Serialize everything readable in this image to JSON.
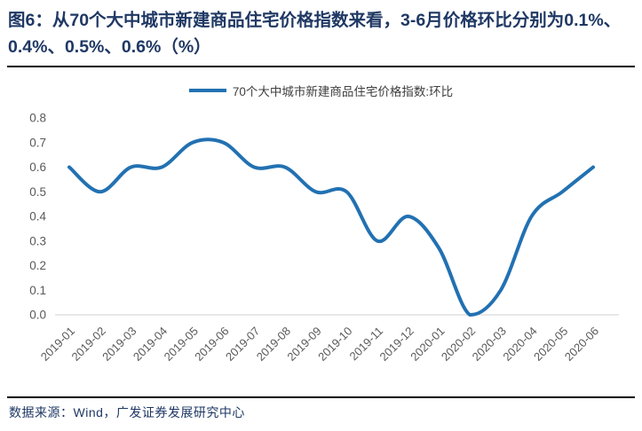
{
  "page": {
    "title": "图6：从70个大中城市新建商品住宅价格指数来看，3-6月价格环比分别为0.1%、0.4%、0.5%、0.6%（%）",
    "source": "数据来源：Wind，广发证券发展研究中心"
  },
  "colors": {
    "line": "#2271B2",
    "title_text": "#1F3864",
    "axis_text": "#595959",
    "legend_text": "#404040",
    "baseline": "#D9D9D9",
    "divider": "#000000",
    "background": "#FFFFFF"
  },
  "chart_data": {
    "type": "line",
    "smooth": true,
    "grid": false,
    "legend_position": "top",
    "title": "",
    "xlabel": "",
    "ylabel": "",
    "x": [
      "2019-01",
      "2019-02",
      "2019-03",
      "2019-04",
      "2019-05",
      "2019-06",
      "2019-07",
      "2019-08",
      "2019-09",
      "2019-10",
      "2019-11",
      "2019-12",
      "2020-01",
      "2020-02",
      "2020-03",
      "2020-04",
      "2020-05",
      "2020-06"
    ],
    "series": [
      {
        "name": "70个大中城市新建商品住宅价格指数:环比",
        "values": [
          0.6,
          0.5,
          0.6,
          0.6,
          0.7,
          0.7,
          0.6,
          0.6,
          0.5,
          0.5,
          0.3,
          0.4,
          0.27,
          0.0,
          0.1,
          0.4,
          0.5,
          0.6
        ]
      }
    ],
    "ylim": [
      0.0,
      0.8
    ],
    "yticks": [
      0.0,
      0.1,
      0.2,
      0.3,
      0.4,
      0.5,
      0.6,
      0.7,
      0.8
    ]
  }
}
